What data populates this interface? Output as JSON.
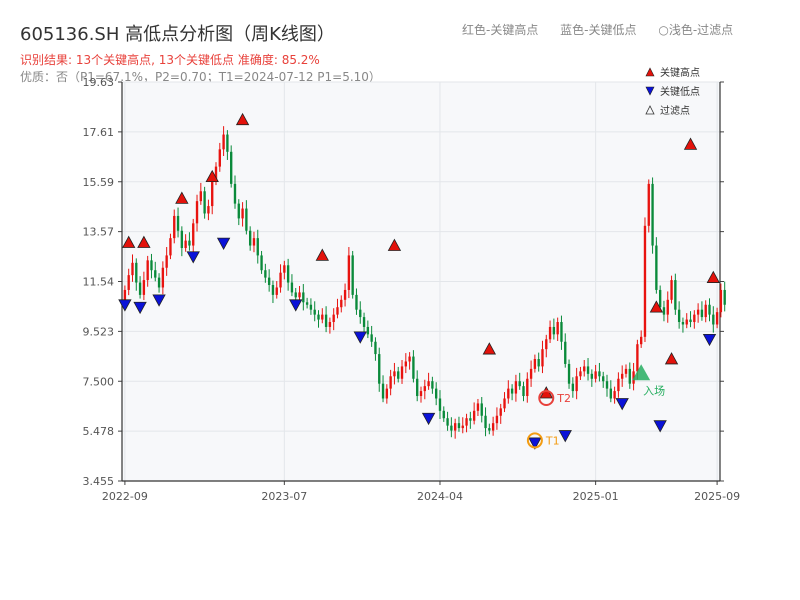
{
  "header": {
    "title": "605136.SH 高低点分析图（周K线图）",
    "result": "识别结果: 13个关键高点, 13个关键低点  准确度: 85.2%",
    "quality": "优质：否（P1=67.1%，P2=0.70；T1=2024-07-12 P1=5.10）"
  },
  "top_legend": {
    "red": "红色-关键高点",
    "blue": "蓝色-关键低点",
    "light": "○浅色-过滤点"
  },
  "colors": {
    "up": "#e8130f",
    "down": "#0a8a3a",
    "high_marker": "#e3120b",
    "low_marker": "#0a12d8",
    "orange": "#f39c12",
    "green_marker": "#27ae60",
    "plot_bg": "#f7f8fa",
    "grid": "#e3e6ea"
  },
  "chart_data": {
    "type": "candlestick",
    "title": "605136.SH 高低点分析图（周K线图）",
    "ylim": [
      3.455,
      19.63
    ],
    "yticks": [
      "3.455",
      "5.478",
      "7.500",
      "9.523",
      "11.54",
      "13.57",
      "15.59",
      "17.61",
      "19.63"
    ],
    "xticks": [
      {
        "label": "2022-09",
        "index": 0
      },
      {
        "label": "2023-07",
        "index": 42
      },
      {
        "label": "2024-04",
        "index": 83
      },
      {
        "label": "2025-01",
        "index": 124
      },
      {
        "label": "2025-09",
        "index": 156
      }
    ],
    "weeks": 157,
    "legend": [
      {
        "label": "关键高点",
        "symbol": "triangle-up",
        "color": "#e3120b"
      },
      {
        "label": "关键低点",
        "symbol": "triangle-down",
        "color": "#0a12d8"
      },
      {
        "label": "过滤点",
        "symbol": "triangle-up-hollow",
        "color": "#333333"
      }
    ],
    "closes": [
      11.2,
      11.8,
      12.3,
      11.5,
      11.0,
      11.6,
      12.4,
      12.0,
      11.7,
      11.3,
      12.1,
      12.6,
      13.3,
      14.2,
      13.6,
      12.9,
      13.2,
      13.0,
      13.9,
      14.8,
      15.2,
      14.3,
      14.6,
      15.6,
      16.2,
      16.9,
      17.5,
      16.8,
      15.5,
      14.7,
      14.1,
      14.5,
      13.6,
      13.0,
      13.3,
      12.6,
      12.0,
      11.7,
      11.4,
      11.0,
      11.3,
      11.9,
      12.2,
      11.5,
      11.1,
      10.9,
      11.1,
      10.7,
      10.6,
      10.4,
      10.2,
      10.0,
      10.2,
      9.7,
      9.9,
      10.2,
      10.5,
      10.8,
      11.2,
      12.6,
      11.0,
      10.4,
      10.1,
      9.7,
      9.4,
      9.1,
      8.6,
      7.4,
      6.8,
      7.2,
      7.7,
      7.9,
      7.6,
      8.1,
      8.3,
      8.5,
      7.6,
      6.9,
      7.1,
      7.3,
      7.5,
      7.2,
      6.8,
      6.3,
      6.0,
      5.7,
      5.5,
      5.8,
      5.6,
      5.7,
      6.0,
      5.9,
      6.3,
      6.6,
      6.1,
      5.6,
      5.5,
      5.8,
      6.1,
      6.4,
      6.8,
      7.2,
      7.0,
      7.5,
      7.3,
      6.9,
      7.6,
      8.0,
      8.4,
      8.1,
      8.8,
      9.2,
      9.7,
      9.4,
      9.9,
      9.1,
      8.2,
      7.4,
      7.1,
      7.7,
      7.9,
      8.1,
      7.8,
      7.6,
      7.9,
      7.7,
      7.5,
      7.2,
      6.8,
      7.1,
      7.6,
      7.8,
      8.0,
      7.4,
      7.9,
      9.0,
      9.3,
      13.8,
      15.5,
      13.0,
      11.2,
      10.5,
      10.2,
      10.8,
      11.6,
      10.4,
      9.9,
      9.8,
      10.0,
      9.9,
      10.2,
      10.4,
      10.1,
      10.6,
      10.2,
      9.8,
      10.3,
      11.2,
      10.6
    ],
    "key_highs": [
      {
        "index": 1,
        "price": 12.92
      },
      {
        "index": 5,
        "price": 12.92
      },
      {
        "index": 15,
        "price": 14.71
      },
      {
        "index": 23,
        "price": 15.59
      },
      {
        "index": 31,
        "price": 17.9
      },
      {
        "index": 52,
        "price": 12.4
      },
      {
        "index": 71,
        "price": 12.8
      },
      {
        "index": 96,
        "price": 8.6
      },
      {
        "index": 111,
        "price": 6.82
      },
      {
        "index": 140,
        "price": 10.3
      },
      {
        "index": 144,
        "price": 8.2
      },
      {
        "index": 149,
        "price": 16.9
      },
      {
        "index": 155,
        "price": 11.5
      }
    ],
    "key_lows": [
      {
        "index": 0,
        "price": 10.8
      },
      {
        "index": 4,
        "price": 10.7
      },
      {
        "index": 9,
        "price": 11.0
      },
      {
        "index": 18,
        "price": 12.75
      },
      {
        "index": 26,
        "price": 13.3
      },
      {
        "index": 45,
        "price": 10.8
      },
      {
        "index": 62,
        "price": 9.5
      },
      {
        "index": 80,
        "price": 6.2
      },
      {
        "index": 108,
        "price": 5.2
      },
      {
        "index": 116,
        "price": 5.5
      },
      {
        "index": 131,
        "price": 6.8
      },
      {
        "index": 141,
        "price": 5.9
      },
      {
        "index": 154,
        "price": 9.4
      }
    ],
    "annotations": [
      {
        "label": "T1",
        "index": 108,
        "price": 5.1,
        "color": "#f39c12"
      },
      {
        "label": "T2",
        "index": 111,
        "price": 6.82,
        "color": "#e8413b"
      },
      {
        "label": "入场",
        "index": 136,
        "price": 7.7,
        "color": "#27ae60"
      }
    ]
  }
}
